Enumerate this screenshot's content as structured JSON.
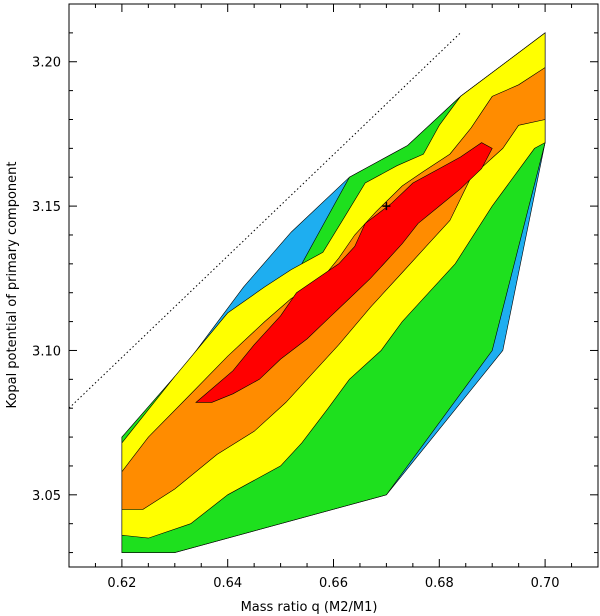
{
  "chart_data": {
    "type": "contour",
    "xlabel": "Mass ratio q (M2/M1)",
    "ylabel": "Kopal potential of primary component",
    "xlim": [
      0.61,
      0.71
    ],
    "ylim": [
      3.025,
      3.22
    ],
    "xticks": [
      {
        "value": 0.62,
        "label": "0.62"
      },
      {
        "value": 0.64,
        "label": "0.64"
      },
      {
        "value": 0.66,
        "label": "0.66"
      },
      {
        "value": 0.68,
        "label": "0.68"
      },
      {
        "value": 0.7,
        "label": "0.70"
      }
    ],
    "yticks": [
      {
        "value": 3.05,
        "label": "3.05"
      },
      {
        "value": 3.1,
        "label": "3.10"
      },
      {
        "value": 3.15,
        "label": "3.15"
      },
      {
        "value": 3.2,
        "label": "3.20"
      }
    ],
    "boundary_line": {
      "style": "dotted",
      "points": [
        [
          0.61,
          3.08
        ],
        [
          0.684,
          3.21
        ]
      ]
    },
    "best_fit": {
      "q": 0.67,
      "potential": 3.15
    },
    "contour_regions": [
      {
        "level": "blue",
        "color": "#1eaef0",
        "polygon": [
          [
            0.643,
            3.122
          ],
          [
            0.652,
            3.141
          ],
          [
            0.663,
            3.16
          ],
          [
            0.674,
            3.171
          ],
          [
            0.684,
            3.188
          ],
          [
            0.7,
            3.21
          ],
          [
            0.7,
            3.172
          ],
          [
            0.692,
            3.1
          ],
          [
            0.67,
            3.05
          ],
          [
            0.63,
            3.03
          ],
          [
            0.62,
            3.03
          ],
          [
            0.62,
            3.07
          ],
          [
            0.63,
            3.09
          ]
        ]
      },
      {
        "level": "green",
        "color": "#1ee01e",
        "polygon": [
          [
            0.63,
            3.091
          ],
          [
            0.64,
            3.11
          ],
          [
            0.647,
            3.12
          ],
          [
            0.651,
            3.125
          ],
          [
            0.654,
            3.13
          ],
          [
            0.657,
            3.14
          ],
          [
            0.663,
            3.16
          ],
          [
            0.674,
            3.171
          ],
          [
            0.684,
            3.188
          ],
          [
            0.7,
            3.21
          ],
          [
            0.7,
            3.172
          ],
          [
            0.69,
            3.1
          ],
          [
            0.67,
            3.05
          ],
          [
            0.63,
            3.03
          ],
          [
            0.62,
            3.03
          ],
          [
            0.62,
            3.07
          ]
        ]
      },
      {
        "level": "yellow",
        "color": "#ffff00",
        "polygon": [
          [
            0.62,
            3.068
          ],
          [
            0.63,
            3.091
          ],
          [
            0.64,
            3.113
          ],
          [
            0.647,
            3.122
          ],
          [
            0.652,
            3.128
          ],
          [
            0.658,
            3.134
          ],
          [
            0.662,
            3.146
          ],
          [
            0.666,
            3.158
          ],
          [
            0.672,
            3.164
          ],
          [
            0.677,
            3.168
          ],
          [
            0.68,
            3.178
          ],
          [
            0.684,
            3.188
          ],
          [
            0.7,
            3.21
          ],
          [
            0.7,
            3.172
          ],
          [
            0.698,
            3.17
          ],
          [
            0.69,
            3.15
          ],
          [
            0.683,
            3.13
          ],
          [
            0.678,
            3.12
          ],
          [
            0.673,
            3.11
          ],
          [
            0.669,
            3.1
          ],
          [
            0.663,
            3.09
          ],
          [
            0.659,
            3.08
          ],
          [
            0.654,
            3.068
          ],
          [
            0.65,
            3.06
          ],
          [
            0.64,
            3.05
          ],
          [
            0.633,
            3.04
          ],
          [
            0.625,
            3.035
          ],
          [
            0.62,
            3.036
          ]
        ]
      },
      {
        "level": "orange",
        "color": "#ff8c00",
        "polygon": [
          [
            0.62,
            3.058
          ],
          [
            0.625,
            3.07
          ],
          [
            0.632,
            3.083
          ],
          [
            0.64,
            3.098
          ],
          [
            0.647,
            3.11
          ],
          [
            0.652,
            3.118
          ],
          [
            0.657,
            3.123
          ],
          [
            0.661,
            3.132
          ],
          [
            0.664,
            3.14
          ],
          [
            0.668,
            3.148
          ],
          [
            0.673,
            3.157
          ],
          [
            0.677,
            3.162
          ],
          [
            0.682,
            3.168
          ],
          [
            0.686,
            3.177
          ],
          [
            0.69,
            3.188
          ],
          [
            0.695,
            3.192
          ],
          [
            0.7,
            3.198
          ],
          [
            0.7,
            3.18
          ],
          [
            0.695,
            3.178
          ],
          [
            0.692,
            3.17
          ],
          [
            0.686,
            3.16
          ],
          [
            0.682,
            3.145
          ],
          [
            0.678,
            3.137
          ],
          [
            0.673,
            3.127
          ],
          [
            0.667,
            3.115
          ],
          [
            0.661,
            3.102
          ],
          [
            0.656,
            3.092
          ],
          [
            0.651,
            3.082
          ],
          [
            0.645,
            3.072
          ],
          [
            0.638,
            3.064
          ],
          [
            0.63,
            3.052
          ],
          [
            0.624,
            3.045
          ],
          [
            0.62,
            3.045
          ]
        ]
      },
      {
        "level": "red",
        "color": "#ff0000",
        "polygon": [
          [
            0.634,
            3.082
          ],
          [
            0.641,
            3.093
          ],
          [
            0.645,
            3.102
          ],
          [
            0.65,
            3.112
          ],
          [
            0.653,
            3.12
          ],
          [
            0.657,
            3.125
          ],
          [
            0.661,
            3.13
          ],
          [
            0.664,
            3.136
          ],
          [
            0.666,
            3.144
          ],
          [
            0.671,
            3.151
          ],
          [
            0.675,
            3.158
          ],
          [
            0.68,
            3.163
          ],
          [
            0.684,
            3.167
          ],
          [
            0.688,
            3.172
          ],
          [
            0.69,
            3.17
          ],
          [
            0.688,
            3.163
          ],
          [
            0.684,
            3.156
          ],
          [
            0.68,
            3.15
          ],
          [
            0.676,
            3.144
          ],
          [
            0.673,
            3.137
          ],
          [
            0.67,
            3.131
          ],
          [
            0.667,
            3.125
          ],
          [
            0.663,
            3.118
          ],
          [
            0.659,
            3.111
          ],
          [
            0.655,
            3.104
          ],
          [
            0.65,
            3.097
          ],
          [
            0.646,
            3.09
          ],
          [
            0.641,
            3.085
          ],
          [
            0.637,
            3.082
          ]
        ]
      }
    ]
  }
}
